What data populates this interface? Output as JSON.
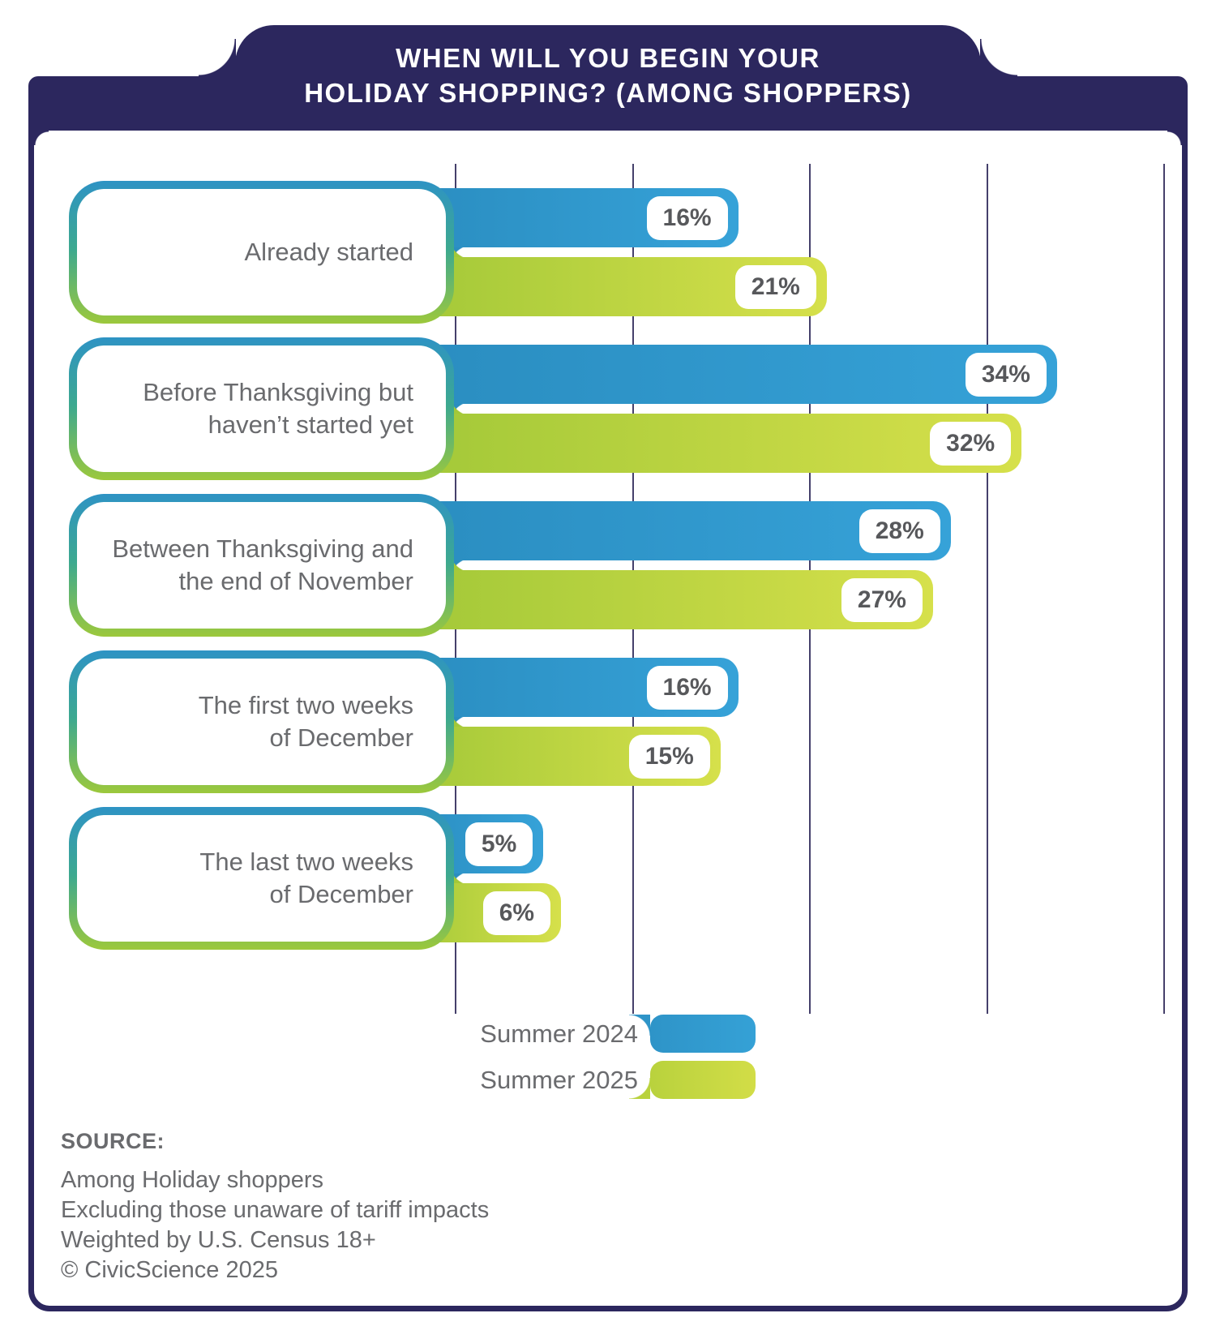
{
  "header": {
    "title_line1": "WHEN WILL YOU BEGIN YOUR",
    "title_line2": "HOLIDAY SHOPPING? (AMONG SHOPPERS)"
  },
  "chart_data": {
    "type": "bar",
    "orientation": "horizontal",
    "title": "When will you begin your holiday shopping? (Among shoppers)",
    "categories": [
      "Already started",
      "Before Thanksgiving but\nhaven’t started yet",
      "Between Thanksgiving and\nthe end of November",
      "The first two weeks\nof December",
      "The last two weeks\nof December"
    ],
    "series": [
      {
        "name": "Summer 2024",
        "color": "#2f97cc",
        "values": [
          16,
          34,
          28,
          16,
          5
        ]
      },
      {
        "name": "Summer 2025",
        "color": "#c3d63f",
        "values": [
          21,
          32,
          27,
          15,
          6
        ]
      }
    ],
    "value_suffix": "%",
    "xlim": [
      0,
      40
    ],
    "gridline_step": 10,
    "grid": true,
    "legend_position": "bottom"
  },
  "colors": {
    "navy": "#2c275e",
    "blue_bar": "#2f97cc",
    "green_bar": "#c3d63f",
    "gridline": "#45406b",
    "text_gray": "#6a6b6e"
  },
  "source": {
    "heading": "SOURCE:",
    "lines": [
      "Among Holiday shoppers",
      "Excluding those unaware of tariff impacts",
      "Weighted by U.S. Census 18+",
      "© CivicScience 2025"
    ]
  }
}
